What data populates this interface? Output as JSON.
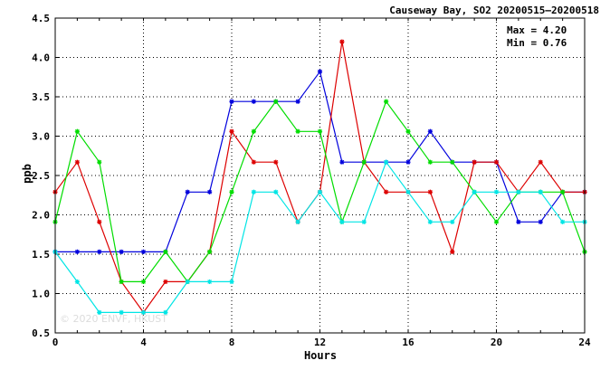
{
  "chart_data": {
    "type": "line",
    "title": "Causeway Bay, SO2 20200515–20200518",
    "xlabel": "Hours",
    "ylabel": "ppb",
    "xlim": [
      0,
      24
    ],
    "ylim": [
      0.5,
      4.5
    ],
    "xticks": [
      0,
      4,
      8,
      12,
      16,
      20,
      24
    ],
    "yticks": [
      0.5,
      1.0,
      1.5,
      2.0,
      2.5,
      3.0,
      3.5,
      4.0,
      4.5
    ],
    "grid": true,
    "legend": "none",
    "stats": {
      "max_text": "Max = 4.20",
      "min_text": "Min = 0.76"
    },
    "watermark": "© 2020 ENVF, HKUST",
    "x": [
      0,
      1,
      2,
      3,
      4,
      5,
      6,
      7,
      8,
      9,
      10,
      11,
      12,
      13,
      14,
      15,
      16,
      17,
      18,
      19,
      20,
      21,
      22,
      23,
      24
    ],
    "series": [
      {
        "color": "#0000dd",
        "values": [
          1.53,
          1.53,
          1.53,
          1.53,
          1.53,
          1.53,
          2.29,
          2.29,
          3.44,
          3.44,
          3.44,
          3.44,
          3.82,
          2.67,
          2.67,
          2.67,
          2.67,
          3.06,
          2.67,
          2.67,
          2.67,
          1.91,
          1.91,
          2.29,
          2.29
        ]
      },
      {
        "color": "#dd0000",
        "values": [
          2.29,
          2.67,
          1.91,
          1.15,
          0.76,
          1.15,
          1.15,
          1.53,
          3.06,
          2.67,
          2.67,
          1.91,
          2.29,
          4.2,
          2.67,
          2.29,
          2.29,
          2.29,
          1.53,
          2.67,
          2.67,
          2.29,
          2.67,
          2.29,
          2.29
        ]
      },
      {
        "color": "#00dd00",
        "values": [
          1.91,
          3.06,
          2.67,
          1.15,
          1.15,
          1.53,
          1.15,
          1.53,
          2.29,
          3.06,
          3.44,
          3.06,
          3.06,
          1.91,
          2.67,
          3.44,
          3.06,
          2.67,
          2.67,
          2.29,
          1.91,
          2.29,
          2.29,
          2.29,
          1.53
        ]
      },
      {
        "color": "#00e5e5",
        "values": [
          1.53,
          1.15,
          0.76,
          0.76,
          0.76,
          0.76,
          1.15,
          1.15,
          1.15,
          2.29,
          2.29,
          1.91,
          2.29,
          1.91,
          1.91,
          2.67,
          2.29,
          1.91,
          1.91,
          2.29,
          2.29,
          2.29,
          2.29,
          1.91,
          1.91
        ]
      }
    ]
  }
}
